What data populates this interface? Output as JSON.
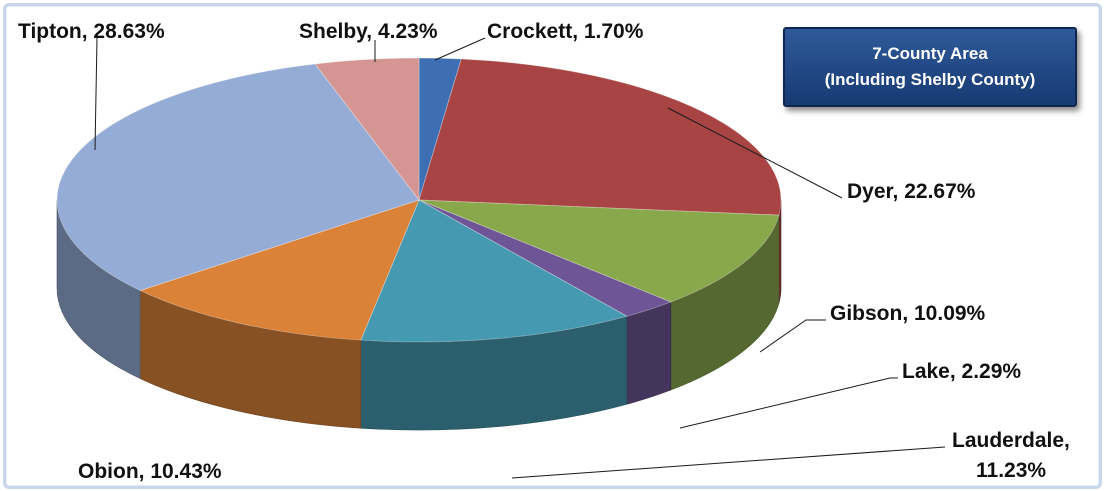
{
  "chart_data": {
    "type": "pie",
    "title_lines": [
      "7-County Area",
      "(Including Shelby County)"
    ],
    "categories": [
      "Crockett",
      "Dyer",
      "Gibson",
      "Lake",
      "Lauderdale",
      "Obion",
      "Tipton",
      "Shelby"
    ],
    "values": [
      1.7,
      22.67,
      10.09,
      2.29,
      11.23,
      10.43,
      28.63,
      4.23
    ],
    "labels": [
      "Crockett, 1.70%",
      "Dyer, 22.67%",
      "Gibson, 10.09%",
      "Lake, 2.29%",
      "Lauderdale,",
      "Obion, 10.43%",
      "Tipton, 28.63%",
      "Shelby, 4.23%"
    ],
    "label_continuation": {
      "Lauderdale": "11.23%"
    },
    "colors": [
      "#3e6fb4",
      "#a94444",
      "#89a84b",
      "#6e5596",
      "#4599b0",
      "#db8239",
      "#95acd6",
      "#d59592"
    ],
    "style": "3d-pie",
    "legend": "none"
  }
}
